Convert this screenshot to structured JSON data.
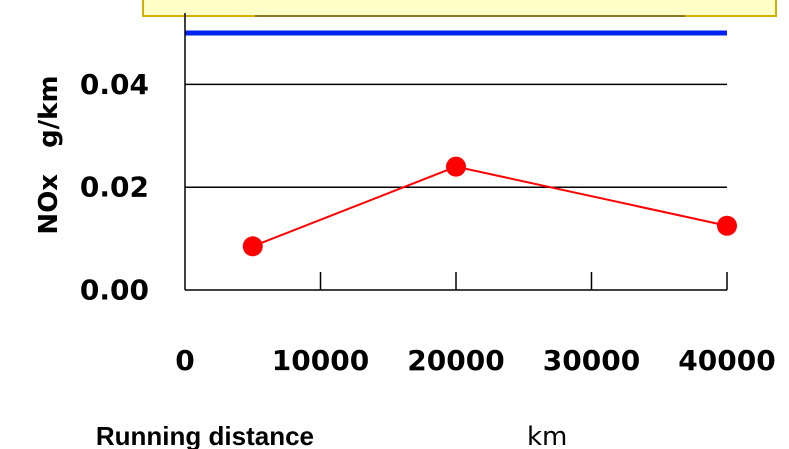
{
  "chart_data": {
    "type": "line",
    "title": "",
    "xlabel": "Running distance",
    "xlabel_unit": "km",
    "ylabel": "NOx　g/km",
    "xlim": [
      0,
      40000
    ],
    "ylim": [
      0,
      0.05
    ],
    "x_ticks": [
      "0",
      "10000",
      "20000",
      "30000",
      "40000"
    ],
    "y_ticks": [
      "0.00",
      "0.02",
      "0.04"
    ],
    "grid": "horizontal",
    "series": [
      {
        "color": "#ff0000",
        "marker": "circle",
        "points": [
          {
            "x": 5000,
            "y": 0.0085
          },
          {
            "x": 20000,
            "y": 0.024
          },
          {
            "x": 40000,
            "y": 0.0125
          }
        ]
      }
    ],
    "reference_line": {
      "y": 0.05,
      "color": "#0022ee"
    }
  },
  "colors": {
    "banner_fill": "#ffffc8",
    "banner_border": "#d4b000"
  }
}
